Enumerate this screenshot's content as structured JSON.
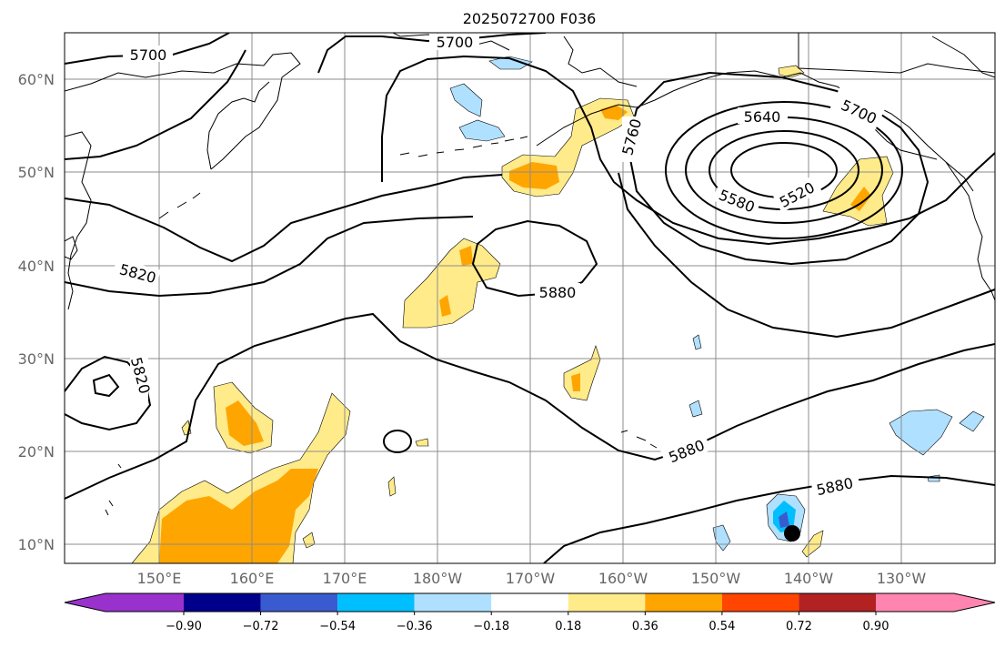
{
  "title": "2025072700 F036",
  "lon_labels": [
    "150°E",
    "160°E",
    "170°E",
    "180°W",
    "170°W",
    "160°W",
    "150°W",
    "140°W",
    "130°W"
  ],
  "lat_labels": [
    "60°N",
    "50°N",
    "40°N",
    "30°N",
    "20°N",
    "10°N"
  ],
  "contour_labels": [
    "5700",
    "5700",
    "5760",
    "5700",
    "5640",
    "5580",
    "5520",
    "5820",
    "5880",
    "5820",
    "5880",
    "5880"
  ],
  "colorbar": {
    "ticks": [
      "−0.90",
      "−0.72",
      "−0.54",
      "−0.36",
      "−0.18",
      "0.18",
      "0.36",
      "0.54",
      "0.72",
      "0.90"
    ],
    "colors": [
      "#9932cc",
      "#00008b",
      "#3a5bd0",
      "#00bfff",
      "#b0e0ff",
      "#ffffff",
      "#ffeb8a",
      "#ffa500",
      "#ff4500",
      "#b22222",
      "#ff85b0"
    ]
  },
  "colors": {
    "pos_light": "#ffeb8a",
    "pos_mid": "#ffa500",
    "neg_light": "#b0e0ff",
    "neg_mid": "#00bfff",
    "neg_dark": "#3a5bd0",
    "grid": "#8c8c8c"
  },
  "marker": "storm-center-dot"
}
